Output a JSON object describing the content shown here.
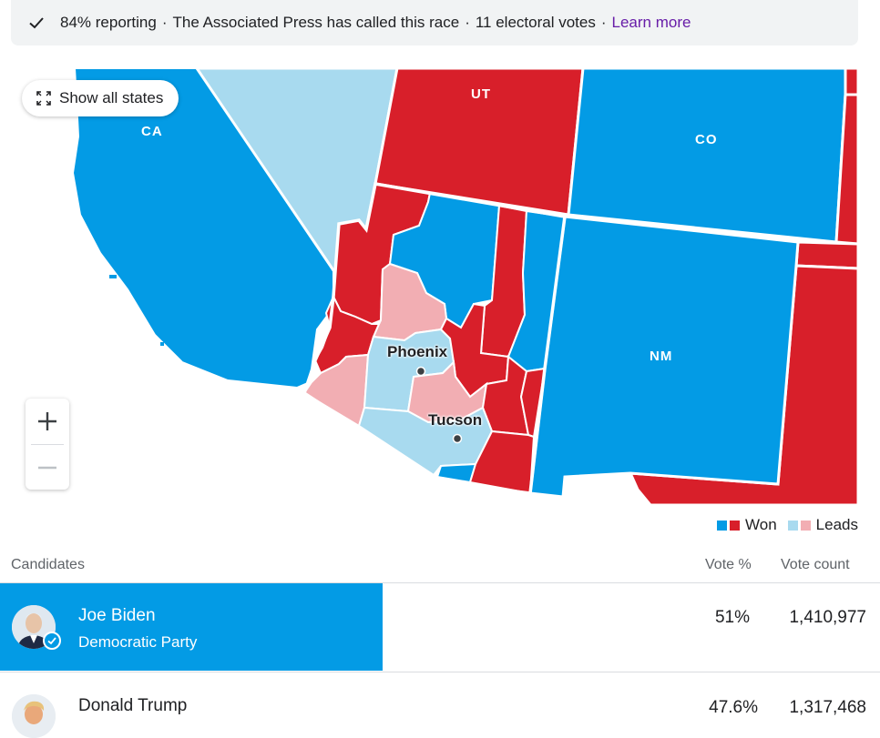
{
  "status": {
    "reporting": "84% reporting",
    "called": "The Associated Press has called this race",
    "electoral": "11 electoral votes",
    "learn_more": "Learn more",
    "separator": "·"
  },
  "map": {
    "show_all_label": "Show all states",
    "state_labels": {
      "ca": "CA",
      "ut": "UT",
      "co": "CO",
      "nm": "NM"
    },
    "city_labels": {
      "phoenix": "Phoenix",
      "tucson": "Tucson"
    },
    "zoom_in": "+",
    "zoom_out": "−",
    "colors": {
      "dem_won": "#039be5",
      "rep_won": "#d81f2a",
      "dem_leads": "#a8daef",
      "rep_leads": "#f2aeb3"
    }
  },
  "legend": {
    "won": "Won",
    "leads": "Leads"
  },
  "table": {
    "headers": {
      "candidates": "Candidates",
      "vote_pct": "Vote %",
      "vote_count": "Vote count"
    },
    "candidates": [
      {
        "name": "Joe Biden",
        "party": "Democratic Party",
        "pct": "51%",
        "count": "1,410,977",
        "winner": true
      },
      {
        "name": "Donald Trump",
        "party": "",
        "pct": "47.6%",
        "count": "1,317,468",
        "winner": false
      }
    ]
  }
}
